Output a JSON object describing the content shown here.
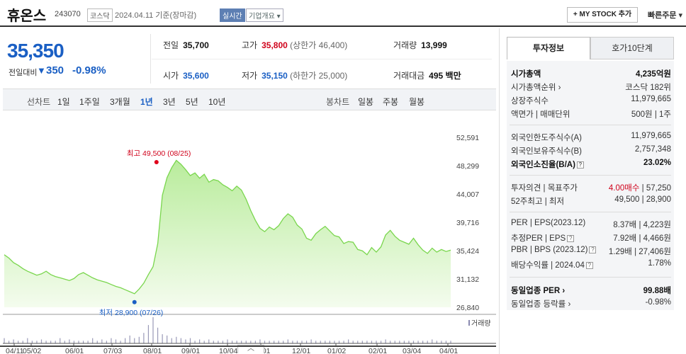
{
  "header": {
    "name": "휴온스",
    "code": "243070",
    "market": "코스닥",
    "date": "2024.04.11  기준(장마감)",
    "realtime": "실시간",
    "corp_overview": "기업개요 ▾",
    "my_stock": "+ MY STOCK 추가",
    "quick_order": "빠른주문 ▾"
  },
  "quote": {
    "price": "35,350",
    "change_label": "전일대비",
    "change": "350",
    "change_pct": "-0.98%",
    "prev_label": "전일",
    "prev": "35,700",
    "high_label": "고가",
    "high": "35,800",
    "upper_limit": "(상한가 46,400)",
    "volume_label": "거래량",
    "volume": "13,999",
    "open_label": "시가",
    "open": "35,600",
    "low_label": "저가",
    "low": "35,150",
    "lower_limit": "(하한가 25,000)",
    "value_label": "거래대금",
    "value": "495 백만"
  },
  "periods": {
    "line_label": "선차트",
    "items": [
      "1일",
      "1주일",
      "3개월",
      "1년",
      "3년",
      "5년",
      "10년"
    ],
    "selected": "1년",
    "candle_label": "봉차트",
    "candle_items": [
      "일봉",
      "주봉",
      "월봉"
    ]
  },
  "chart_data": {
    "type": "area",
    "y_ticks": [
      "52,591",
      "48,299",
      "44,007",
      "39,716",
      "35,424",
      "31,132",
      "26,840"
    ],
    "ylim": [
      26840,
      52591
    ],
    "x_labels": [
      "04/11",
      "05/02",
      "06/01",
      "07/03",
      "08/01",
      "09/01",
      "10/04",
      "11/01",
      "12/01",
      "01/02",
      "02/01",
      "03/04",
      "04/01"
    ],
    "high_annotation": "최고 49,500 (08/25)",
    "low_annotation": "최저 28,900 (07/26)",
    "volume_label": "거래량",
    "color": "#7ad64e",
    "values": [
      34800,
      34300,
      33600,
      33200,
      32700,
      32300,
      32000,
      31700,
      31900,
      32300,
      31800,
      31500,
      31300,
      31100,
      30900,
      31200,
      31800,
      32100,
      31700,
      31300,
      31000,
      30800,
      30600,
      30300,
      30000,
      29800,
      29500,
      29200,
      28900,
      29600,
      30500,
      31800,
      33000,
      36500,
      43800,
      46500,
      48000,
      49100,
      48500,
      47700,
      46800,
      47200,
      46400,
      47000,
      45800,
      46200,
      46000,
      45400,
      45000,
      44500,
      45200,
      44600,
      43200,
      41500,
      40000,
      38800,
      38300,
      39000,
      38600,
      39200,
      40300,
      41000,
      40500,
      39300,
      38700,
      37300,
      37000,
      38000,
      38600,
      39100,
      38400,
      37700,
      37500,
      36500,
      36800,
      36700,
      35600,
      35400,
      34800,
      35900,
      35200,
      36000,
      37800,
      38500,
      37600,
      37000,
      36700,
      36400,
      37300,
      36300,
      35500,
      35000,
      35800,
      35200,
      35600,
      35300,
      35500
    ],
    "volumes": [
      0.2,
      0.1,
      0.15,
      0.1,
      0.1,
      0.2,
      0.1,
      0.1,
      0.15,
      0.1,
      0.1,
      0.1,
      0.2,
      0.1,
      0.15,
      0.1,
      0.1,
      0.1,
      0.1,
      0.2,
      0.1,
      0.15,
      0.1,
      0.2,
      0.15,
      0.1,
      0.2,
      0.3,
      0.2,
      0.25,
      0.4,
      0.7,
      1.0,
      0.6,
      0.35,
      0.3,
      0.2,
      0.25,
      0.2,
      0.15,
      0.2,
      0.1,
      0.15,
      0.1,
      0.15,
      0.1,
      0.1,
      0.1,
      0.15,
      0.1,
      0.1,
      0.1,
      0.1,
      0.1,
      0.1,
      0.15,
      0.1,
      0.1,
      0.1,
      0.1,
      0.1,
      0.15,
      0.1,
      0.1,
      0.1,
      0.1,
      0.15,
      0.1,
      0.1,
      0.1,
      0.1,
      0.1,
      0.1,
      0.1,
      0.15,
      0.1,
      0.1,
      0.1,
      0.1,
      0.1,
      0.1,
      0.1,
      0.15,
      0.1,
      0.1,
      0.1,
      0.1,
      0.1,
      0.1,
      0.1,
      0.1,
      0.1,
      0.15,
      0.1,
      0.1,
      0.1,
      0.1
    ]
  },
  "info": {
    "tab_invest": "투자정보",
    "tab_orderbook": "호가10단계",
    "market_cap_label": "시가총액",
    "market_cap": "4,235억원",
    "cap_rank_label": "시가총액순위",
    "cap_rank": "코스닥 182위",
    "shares_label": "상장주식수",
    "shares": "11,979,665",
    "par_label": "액면가 | 매매단위",
    "par": "500원 | 1주",
    "foreign_limit_label": "외국인한도주식수(A)",
    "foreign_limit": "11,979,665",
    "foreign_hold_label": "외국인보유주식수(B)",
    "foreign_hold": "2,757,348",
    "foreign_rate_label": "외국인소진율(B/A)",
    "foreign_rate": "23.02%",
    "opinion_label": "투자의견 | 목표주가",
    "opinion": "4.00매수",
    "target": "57,250",
    "week52_label": "52주최고 | 최저",
    "week52": "49,500 | 28,900",
    "per_label": "PER | EPS(2023.12)",
    "per": "8.37배 | 4,223원",
    "est_per_label": "추정PER | EPS",
    "est_per": "7.92배 | 4,466원",
    "pbr_label": "PBR | BPS (2023.12)",
    "pbr": "1.29배 | 27,406원",
    "div_label": "배당수익률 | 2024.04",
    "div": "1.78%",
    "industry_per_label": "동일업종 PER",
    "industry_per": "99.88배",
    "industry_chg_label": "동일업종 등락률",
    "industry_chg": "-0.98%"
  },
  "handle": "︿"
}
